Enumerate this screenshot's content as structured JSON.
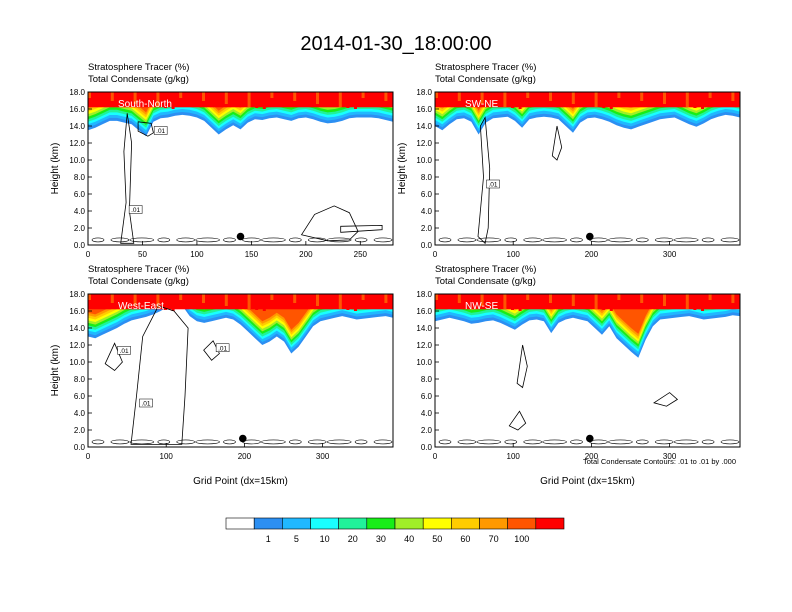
{
  "figure": {
    "title": "2014-01-30_18:00:00",
    "contour_note": "Total Condensate Contours: .01 to .01 by .000",
    "colorbar": {
      "levels": [
        "1",
        "5",
        "10",
        "20",
        "30",
        "40",
        "50",
        "60",
        "70",
        "100"
      ],
      "colors": [
        "#ffffff",
        "#2c8ff2",
        "#20b8ff",
        "#19ffff",
        "#21f29a",
        "#18ed18",
        "#a0ef28",
        "#ffff00",
        "#ffcc00",
        "#ff9900",
        "#ff5500",
        "#ff0000"
      ]
    }
  },
  "chart_data": [
    {
      "type": "heatmap",
      "panel": "South-North",
      "header_line1": "Stratosphere Tracer   (%)",
      "header_line2": "Total Condensate   (g/kg)",
      "region_label": "South-North",
      "xlabel": "",
      "ylabel": "Height (km)",
      "xlim": [
        0,
        280
      ],
      "ylim": [
        0,
        18
      ],
      "xticks": [
        "0",
        "50",
        "100",
        "150",
        "200",
        "250"
      ],
      "yticks": [
        "0.0",
        "2.0",
        "4.0",
        "6.0",
        "8.0",
        "10.0",
        "12.0",
        "14.0",
        "16.0",
        "18.0"
      ],
      "marker_x": 140,
      "contour_labels": [
        ".01",
        ".01"
      ],
      "tracer_bottom_km": [
        13.5,
        13.8,
        14.2,
        14.6,
        14.6,
        14.4,
        14.2,
        13.5,
        12.8,
        14.5,
        14.9,
        15.0,
        15.2,
        15.3,
        15.2,
        15.0,
        14.6,
        13.8,
        13.0,
        13.6,
        14.1,
        13.6,
        14.4,
        14.8,
        14.7,
        14.9,
        15.0,
        14.8,
        14.6,
        14.9,
        15.0,
        14.8,
        14.5,
        14.3,
        14.4,
        14.6,
        14.9,
        15.0,
        15.0,
        15.0,
        14.9,
        14.7,
        14.5
      ],
      "condensate_contours": [
        [
          [
            30,
            0.2
          ],
          [
            35,
            5.0
          ],
          [
            33,
            11.0
          ],
          [
            36,
            15.5
          ],
          [
            40,
            12.0
          ],
          [
            38,
            4.0
          ],
          [
            42,
            0.2
          ]
        ],
        [
          [
            46,
            14.5
          ],
          [
            58,
            14.3
          ],
          [
            60,
            13.2
          ],
          [
            55,
            12.8
          ],
          [
            46,
            13.4
          ]
        ],
        [
          [
            196,
            1.2
          ],
          [
            208,
            3.6
          ],
          [
            226,
            4.6
          ],
          [
            240,
            3.8
          ],
          [
            248,
            1.6
          ],
          [
            240,
            0.6
          ],
          [
            220,
            0.5
          ]
        ],
        [
          [
            232,
            1.5
          ],
          [
            270,
            1.8
          ],
          [
            270,
            2.3
          ],
          [
            232,
            2.2
          ]
        ]
      ]
    },
    {
      "type": "heatmap",
      "panel": "SW-NE",
      "header_line1": "Stratosphere Tracer   (%)",
      "header_line2": "Total Condensate   (g/kg)",
      "region_label": "SW-NE",
      "xlabel": "",
      "ylabel": "Height (km)",
      "xlim": [
        0,
        390
      ],
      "ylim": [
        0,
        18
      ],
      "xticks": [
        "0",
        "100",
        "200",
        "300"
      ],
      "yticks": [
        "0.0",
        "2.0",
        "4.0",
        "6.0",
        "8.0",
        "10.0",
        "12.0",
        "14.0",
        "16.0",
        "18.0"
      ],
      "marker_x": 198,
      "contour_labels": [
        ".01"
      ],
      "tracer_bottom_km": [
        14.0,
        13.5,
        14.2,
        14.8,
        14.9,
        14.5,
        13.0,
        14.4,
        14.9,
        15.0,
        15.1,
        14.6,
        13.8,
        14.8,
        15.0,
        15.1,
        15.0,
        14.8,
        14.0,
        13.2,
        14.4,
        14.9,
        15.0,
        14.8,
        14.5,
        14.1,
        13.8,
        13.6,
        13.9,
        14.2,
        14.5,
        14.8,
        14.9,
        15.0,
        14.6,
        14.2,
        13.9,
        14.3,
        14.8,
        15.1,
        15.3,
        15.2,
        15.0
      ],
      "condensate_contours": [
        [
          [
            55,
            1.0
          ],
          [
            62,
            8.0
          ],
          [
            58,
            14.0
          ],
          [
            64,
            15.0
          ],
          [
            70,
            9.0
          ],
          [
            68,
            2.0
          ],
          [
            64,
            0.2
          ]
        ],
        [
          [
            150,
            10.5
          ],
          [
            156,
            14.0
          ],
          [
            162,
            11.5
          ],
          [
            156,
            10.0
          ]
        ]
      ]
    },
    {
      "type": "heatmap",
      "panel": "West-East",
      "header_line1": "Stratosphere Tracer   (%)",
      "header_line2": "Total Condensate   (g/kg)",
      "region_label": "West-East",
      "xlabel": "Grid Point (dx=15km)",
      "ylabel": "Height (km)",
      "xlim": [
        0,
        390
      ],
      "ylim": [
        0,
        18
      ],
      "xticks": [
        "0",
        "100",
        "200",
        "300"
      ],
      "yticks": [
        "0.0",
        "2.0",
        "4.0",
        "6.0",
        "8.0",
        "10.0",
        "12.0",
        "14.0",
        "16.0",
        "18.0"
      ],
      "marker_x": 198,
      "contour_labels": [
        ".01",
        ".01",
        ".01"
      ],
      "tracer_bottom_km": [
        13.0,
        12.8,
        13.2,
        13.6,
        14.0,
        14.5,
        14.9,
        15.1,
        15.3,
        15.6,
        16.0,
        16.5,
        17.0,
        16.6,
        15.4,
        14.8,
        14.6,
        14.8,
        15.0,
        15.2,
        15.0,
        14.4,
        13.6,
        12.8,
        12.0,
        12.4,
        13.0,
        12.4,
        11.0,
        11.8,
        13.0,
        14.2,
        14.8,
        15.0,
        15.2,
        15.4,
        15.2,
        15.0,
        15.1,
        15.2,
        15.3,
        15.4,
        15.2
      ],
      "condensate_contours": [
        [
          [
            55,
            0.3
          ],
          [
            62,
            6.0
          ],
          [
            70,
            13.0
          ],
          [
            90,
            16.6
          ],
          [
            110,
            16.0
          ],
          [
            128,
            14.0
          ],
          [
            124,
            6.0
          ],
          [
            120,
            0.3
          ]
        ],
        [
          [
            22,
            9.8
          ],
          [
            34,
            12.2
          ],
          [
            44,
            10.0
          ],
          [
            34,
            9.0
          ]
        ],
        [
          [
            148,
            11.4
          ],
          [
            160,
            12.5
          ],
          [
            168,
            11.0
          ],
          [
            158,
            10.2
          ]
        ]
      ]
    },
    {
      "type": "heatmap",
      "panel": "NW-SE",
      "header_line1": "Stratosphere Tracer   (%)",
      "header_line2": "Total Condensate   (g/kg)",
      "region_label": "NW-SE",
      "xlabel": "Grid Point (dx=15km)",
      "ylabel": "",
      "xlim": [
        0,
        390
      ],
      "ylim": [
        0,
        18
      ],
      "xticks": [
        "0",
        "100",
        "200",
        "300"
      ],
      "yticks": [
        "0.0",
        "2.0",
        "4.0",
        "6.0",
        "8.0",
        "10.0",
        "12.0",
        "14.0",
        "16.0",
        "18.0"
      ],
      "marker_x": 198,
      "contour_labels": [],
      "tracer_bottom_km": [
        14.8,
        15.0,
        15.2,
        15.0,
        14.8,
        14.5,
        14.6,
        14.8,
        14.9,
        14.6,
        14.2,
        13.8,
        14.4,
        14.9,
        15.0,
        14.8,
        13.4,
        14.6,
        15.0,
        15.2,
        15.0,
        14.8,
        14.0,
        13.2,
        14.2,
        12.8,
        12.0,
        11.2,
        10.5,
        12.6,
        14.2,
        15.0,
        15.1,
        15.2,
        15.3,
        15.4,
        15.2,
        15.0,
        15.1,
        15.2,
        15.3,
        15.5,
        15.4
      ],
      "condensate_contours": [
        [
          [
            105,
            7.5
          ],
          [
            112,
            12.0
          ],
          [
            118,
            9.5
          ],
          [
            112,
            7.0
          ]
        ],
        [
          [
            280,
            5.2
          ],
          [
            300,
            6.4
          ],
          [
            310,
            5.6
          ],
          [
            296,
            4.8
          ]
        ],
        [
          [
            95,
            2.5
          ],
          [
            108,
            4.2
          ],
          [
            116,
            2.8
          ],
          [
            106,
            2.0
          ]
        ]
      ]
    }
  ]
}
